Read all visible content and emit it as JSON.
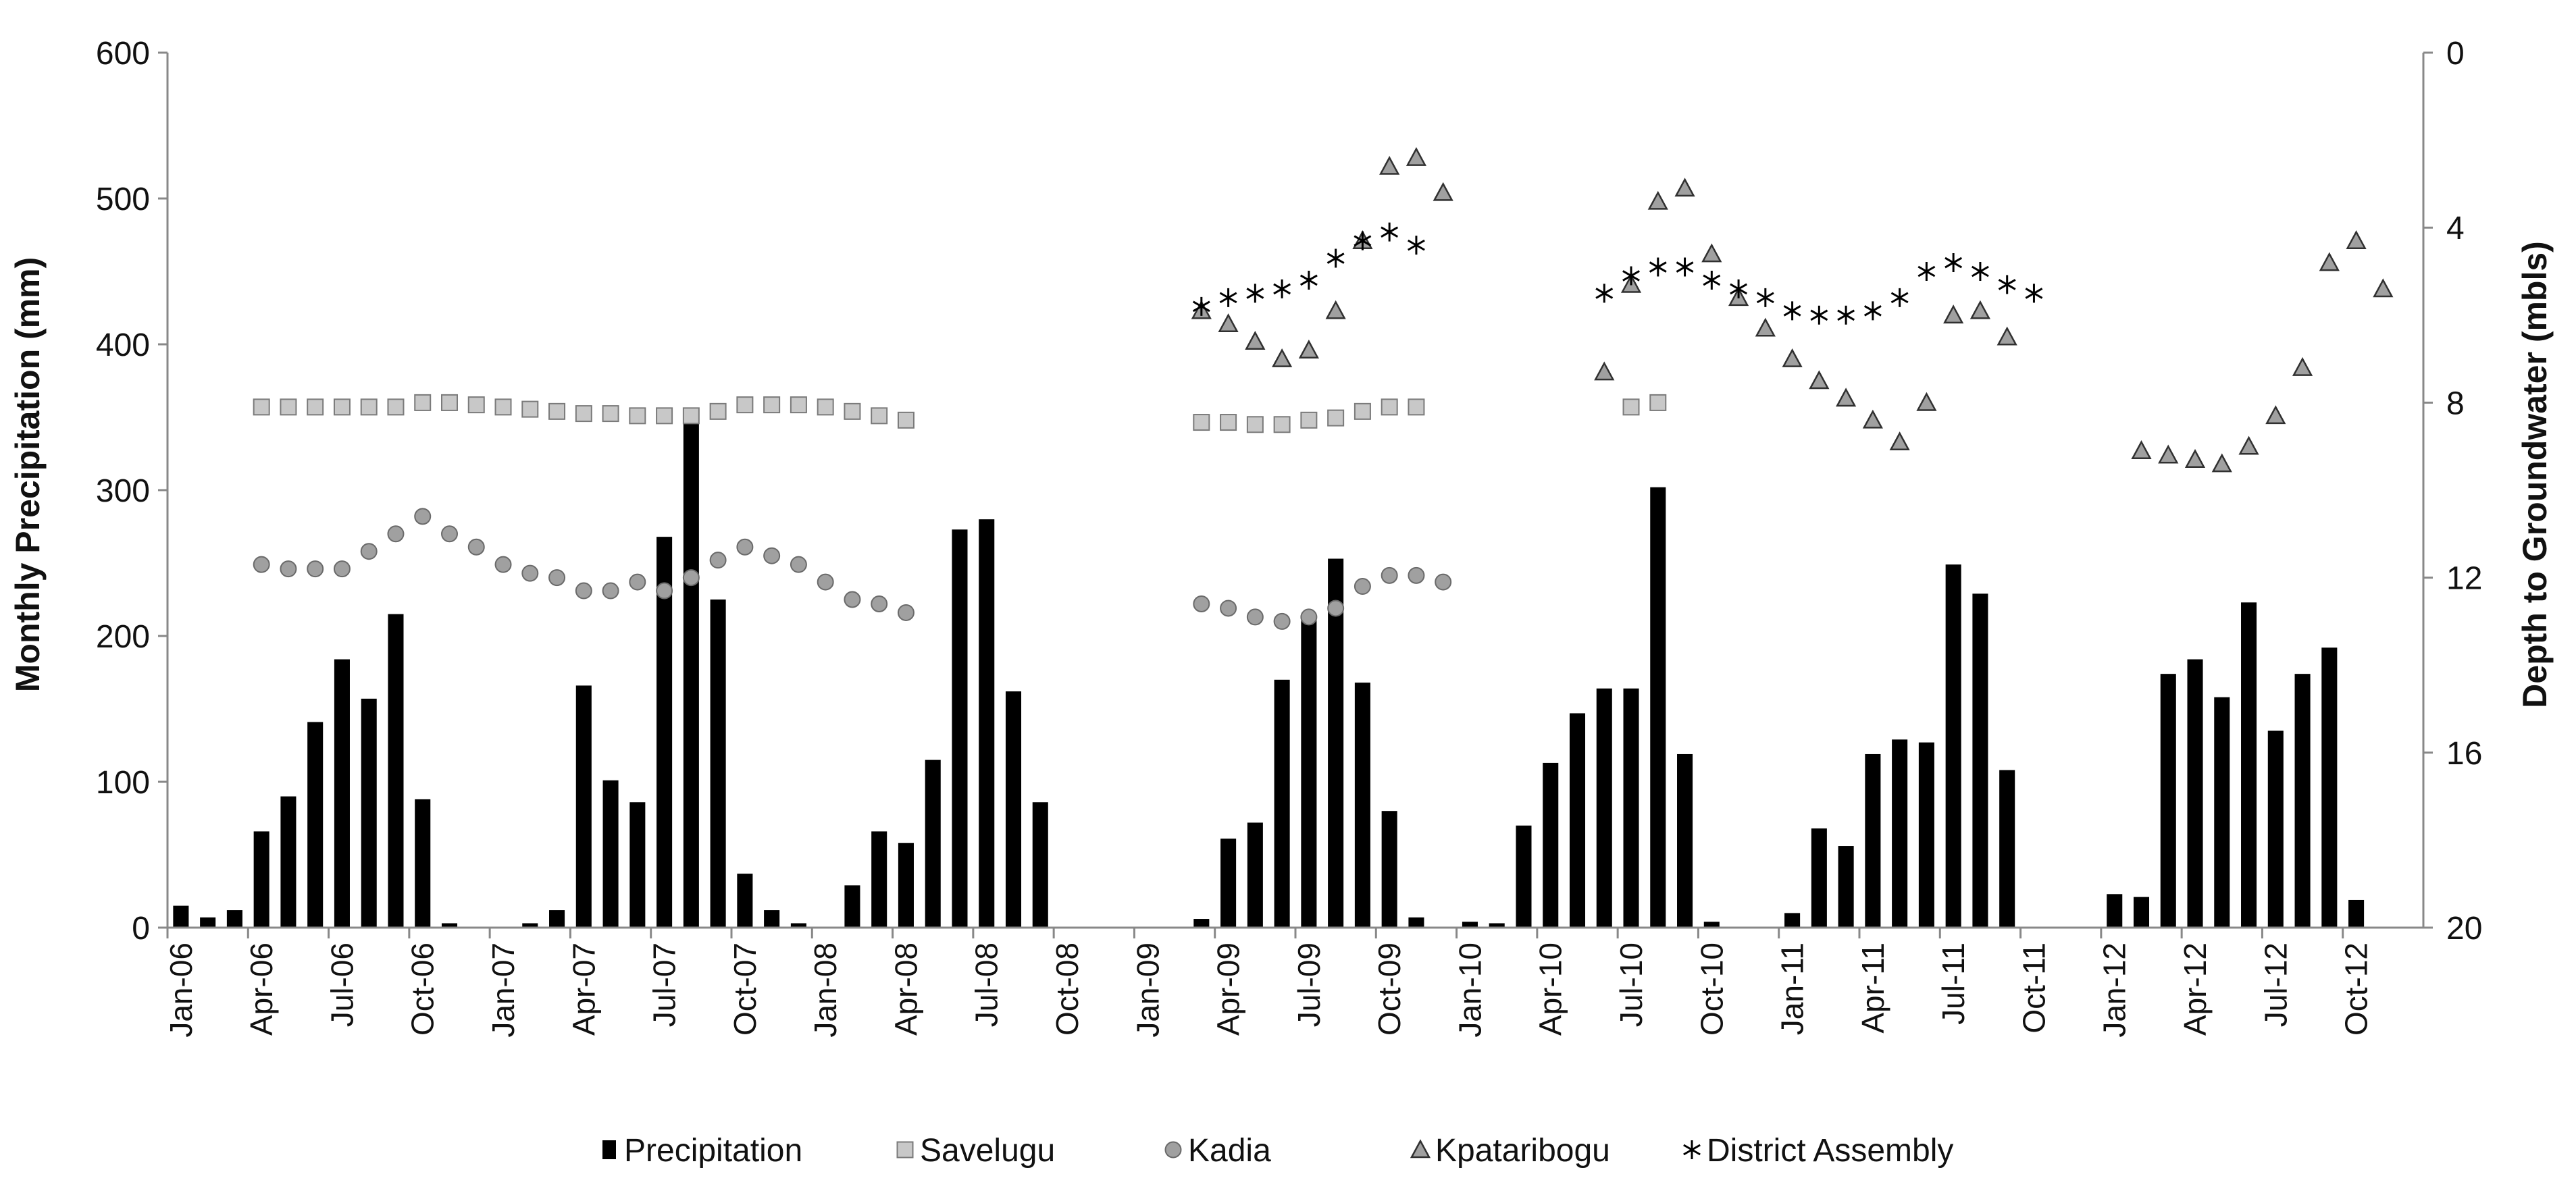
{
  "chart_data": {
    "type": "bar",
    "title": "",
    "x_ticks": [
      "Jan-06",
      "Apr-06",
      "Jul-06",
      "Oct-06",
      "Jan-07",
      "Apr-07",
      "Jul-07",
      "Oct-07",
      "Jan-08",
      "Apr-08",
      "Jul-08",
      "Oct-08",
      "Jan-09",
      "Apr-09",
      "Jul-09",
      "Oct-09",
      "Jan-10",
      "Apr-10",
      "Jul-10",
      "Oct-10",
      "Jan-11",
      "Apr-11",
      "Jul-11",
      "Oct-11",
      "Jan-12",
      "Apr-12",
      "Jul-12",
      "Oct-12"
    ],
    "y_left_label": "Monthly Precipitation (mm)",
    "y_left_ticks": [
      "0",
      "100",
      "200",
      "300",
      "400",
      "500",
      "600"
    ],
    "y_left_range": [
      0,
      600
    ],
    "y_right_label": "Depth to Groundwater (mbls)",
    "y_right_ticks": [
      "0",
      "4",
      "8",
      "12",
      "16",
      "20"
    ],
    "y_right_range": [
      0,
      20
    ],
    "y_right_inverted": true,
    "legend": {
      "placement": "bottom",
      "items": [
        "Precipitation",
        "Savelugu",
        "Kadia",
        "Kpataribogu",
        "District Assembly"
      ]
    },
    "series": [
      {
        "name": "Precipitation",
        "kind": "bar",
        "axis": "left",
        "color": "#000000",
        "data": [
          [
            0,
            15
          ],
          [
            1,
            7
          ],
          [
            2,
            12
          ],
          [
            3,
            66
          ],
          [
            4,
            90
          ],
          [
            5,
            141
          ],
          [
            6,
            184
          ],
          [
            7,
            157
          ],
          [
            8,
            215
          ],
          [
            9,
            88
          ],
          [
            10,
            3
          ],
          [
            13,
            3
          ],
          [
            14,
            12
          ],
          [
            15,
            166
          ],
          [
            16,
            101
          ],
          [
            17,
            86
          ],
          [
            18,
            268
          ],
          [
            19,
            350
          ],
          [
            20,
            225
          ],
          [
            21,
            37
          ],
          [
            22,
            12
          ],
          [
            23,
            3
          ],
          [
            25,
            29
          ],
          [
            26,
            66
          ],
          [
            27,
            58
          ],
          [
            28,
            115
          ],
          [
            29,
            273
          ],
          [
            30,
            280
          ],
          [
            31,
            162
          ],
          [
            32,
            86
          ],
          [
            38,
            6
          ],
          [
            39,
            61
          ],
          [
            40,
            72
          ],
          [
            41,
            170
          ],
          [
            42,
            215
          ],
          [
            43,
            253
          ],
          [
            44,
            168
          ],
          [
            45,
            80
          ],
          [
            46,
            7
          ],
          [
            48,
            4
          ],
          [
            49,
            3
          ],
          [
            50,
            70
          ],
          [
            51,
            113
          ],
          [
            52,
            147
          ],
          [
            53,
            164
          ],
          [
            54,
            164
          ],
          [
            55,
            302
          ],
          [
            56,
            119
          ],
          [
            57,
            4
          ],
          [
            60,
            10
          ],
          [
            61,
            68
          ],
          [
            62,
            56
          ],
          [
            63,
            119
          ],
          [
            64,
            129
          ],
          [
            65,
            127
          ],
          [
            66,
            249
          ],
          [
            67,
            229
          ],
          [
            68,
            108
          ],
          [
            72,
            23
          ],
          [
            73,
            21
          ],
          [
            74,
            174
          ],
          [
            75,
            184
          ],
          [
            76,
            158
          ],
          [
            77,
            223
          ],
          [
            78,
            135
          ],
          [
            79,
            174
          ],
          [
            80,
            192
          ],
          [
            81,
            19
          ]
        ]
      },
      {
        "name": "Savelugu",
        "kind": "marker",
        "marker": "square",
        "axis": "right",
        "color": "#c8c8c8",
        "data": [
          [
            3,
            8.1
          ],
          [
            4,
            8.1
          ],
          [
            5,
            8.1
          ],
          [
            6,
            8.1
          ],
          [
            7,
            8.1
          ],
          [
            8,
            8.1
          ],
          [
            9,
            8.0
          ],
          [
            10,
            8.0
          ],
          [
            11,
            8.05
          ],
          [
            12,
            8.1
          ],
          [
            13,
            8.15
          ],
          [
            14,
            8.2
          ],
          [
            15,
            8.25
          ],
          [
            16,
            8.25
          ],
          [
            17,
            8.3
          ],
          [
            18,
            8.3
          ],
          [
            19,
            8.3
          ],
          [
            20,
            8.2
          ],
          [
            21,
            8.05
          ],
          [
            22,
            8.05
          ],
          [
            23,
            8.05
          ],
          [
            24,
            8.1
          ],
          [
            25,
            8.2
          ],
          [
            26,
            8.3
          ],
          [
            27,
            8.4
          ],
          [
            38,
            8.45
          ],
          [
            39,
            8.45
          ],
          [
            40,
            8.5
          ],
          [
            41,
            8.5
          ],
          [
            42,
            8.4
          ],
          [
            43,
            8.35
          ],
          [
            44,
            8.2
          ],
          [
            45,
            8.1
          ],
          [
            46,
            8.1
          ],
          [
            54,
            8.1
          ],
          [
            55,
            8.0
          ]
        ]
      },
      {
        "name": "Kadia",
        "kind": "marker",
        "marker": "circle",
        "axis": "right",
        "color": "#a0a0a0",
        "data": [
          [
            3,
            11.7
          ],
          [
            4,
            11.8
          ],
          [
            5,
            11.8
          ],
          [
            6,
            11.8
          ],
          [
            7,
            11.4
          ],
          [
            8,
            11.0
          ],
          [
            9,
            10.6
          ],
          [
            10,
            11.0
          ],
          [
            11,
            11.3
          ],
          [
            12,
            11.7
          ],
          [
            13,
            11.9
          ],
          [
            14,
            12.0
          ],
          [
            15,
            12.3
          ],
          [
            16,
            12.3
          ],
          [
            17,
            12.1
          ],
          [
            18,
            12.3
          ],
          [
            19,
            12.0
          ],
          [
            20,
            11.6
          ],
          [
            21,
            11.3
          ],
          [
            22,
            11.5
          ],
          [
            23,
            11.7
          ],
          [
            24,
            12.1
          ],
          [
            25,
            12.5
          ],
          [
            26,
            12.6
          ],
          [
            27,
            12.8
          ],
          [
            38,
            12.6
          ],
          [
            39,
            12.7
          ],
          [
            40,
            12.9
          ],
          [
            41,
            13.0
          ],
          [
            42,
            12.9
          ],
          [
            43,
            12.7
          ],
          [
            44,
            12.2
          ],
          [
            45,
            11.95
          ],
          [
            46,
            11.95
          ],
          [
            47,
            12.1
          ]
        ]
      },
      {
        "name": "Kpataribogu",
        "kind": "marker",
        "marker": "triangle",
        "axis": "right",
        "color": "#a0a0a0",
        "data": [
          [
            38,
            5.9
          ],
          [
            39,
            6.2
          ],
          [
            40,
            6.6
          ],
          [
            41,
            7.0
          ],
          [
            42,
            6.8
          ],
          [
            43,
            5.9
          ],
          [
            44,
            4.3
          ],
          [
            45,
            2.6
          ],
          [
            46,
            2.4
          ],
          [
            47,
            3.2
          ],
          [
            53,
            7.3
          ],
          [
            54,
            5.3
          ],
          [
            55,
            3.4
          ],
          [
            56,
            3.1
          ],
          [
            57,
            4.6
          ],
          [
            58,
            5.6
          ],
          [
            59,
            6.3
          ],
          [
            60,
            7.0
          ],
          [
            61,
            7.5
          ],
          [
            62,
            7.9
          ],
          [
            63,
            8.4
          ],
          [
            64,
            8.9
          ],
          [
            65,
            8.0
          ],
          [
            66,
            6.0
          ],
          [
            67,
            5.9
          ],
          [
            68,
            6.5
          ],
          [
            73,
            9.1
          ],
          [
            74,
            9.2
          ],
          [
            75,
            9.3
          ],
          [
            76,
            9.4
          ],
          [
            77,
            9.0
          ],
          [
            78,
            8.3
          ],
          [
            79,
            7.2
          ],
          [
            80,
            4.8
          ],
          [
            81,
            4.3
          ],
          [
            82,
            5.4
          ]
        ]
      },
      {
        "name": "District Assembly",
        "kind": "marker",
        "marker": "asterisk",
        "axis": "right",
        "color": "#000000",
        "data": [
          [
            38,
            5.8
          ],
          [
            39,
            5.6
          ],
          [
            40,
            5.5
          ],
          [
            41,
            5.4
          ],
          [
            42,
            5.2
          ],
          [
            43,
            4.7
          ],
          [
            44,
            4.3
          ],
          [
            45,
            4.1
          ],
          [
            46,
            4.4
          ],
          [
            53,
            5.5
          ],
          [
            54,
            5.1
          ],
          [
            55,
            4.9
          ],
          [
            56,
            4.9
          ],
          [
            57,
            5.2
          ],
          [
            58,
            5.4
          ],
          [
            59,
            5.6
          ],
          [
            60,
            5.9
          ],
          [
            61,
            6.0
          ],
          [
            62,
            6.0
          ],
          [
            63,
            5.9
          ],
          [
            64,
            5.6
          ],
          [
            65,
            5.0
          ],
          [
            66,
            4.8
          ],
          [
            67,
            5.0
          ],
          [
            68,
            5.3
          ],
          [
            69,
            5.5
          ]
        ]
      }
    ]
  }
}
